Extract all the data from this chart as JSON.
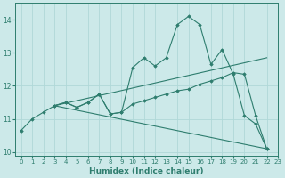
{
  "xlabel": "Humidex (Indice chaleur)",
  "xlim": [
    -0.5,
    23
  ],
  "ylim": [
    9.9,
    14.5
  ],
  "yticks": [
    10,
    11,
    12,
    13,
    14
  ],
  "xticks": [
    0,
    1,
    2,
    3,
    4,
    5,
    6,
    7,
    8,
    9,
    10,
    11,
    12,
    13,
    14,
    15,
    16,
    17,
    18,
    19,
    20,
    21,
    22,
    23
  ],
  "background_color": "#cce9e9",
  "grid_color": "#b0d8d8",
  "line_color": "#2e7d6e",
  "lines": [
    {
      "x": [
        0,
        1,
        2,
        3,
        4,
        5,
        6,
        7,
        8,
        9,
        10,
        11,
        12,
        13,
        14,
        15,
        16,
        17,
        18,
        19,
        20,
        21,
        22
      ],
      "y": [
        10.65,
        11.0,
        11.2,
        11.4,
        11.5,
        11.35,
        11.5,
        11.75,
        11.15,
        11.2,
        12.55,
        12.85,
        12.6,
        12.85,
        13.85,
        14.1,
        13.85,
        12.65,
        13.1,
        12.35,
        11.1,
        10.85,
        10.1
      ],
      "marker": true
    },
    {
      "x": [
        3,
        4,
        5,
        6,
        7,
        8,
        9,
        10,
        11,
        12,
        13,
        14,
        15,
        16,
        17,
        18,
        19,
        20,
        21,
        22
      ],
      "y": [
        11.4,
        11.5,
        11.35,
        11.5,
        11.75,
        11.15,
        11.2,
        11.45,
        11.55,
        11.65,
        11.75,
        11.85,
        11.9,
        12.05,
        12.15,
        12.25,
        12.4,
        12.35,
        11.1,
        10.1
      ],
      "marker": true
    },
    {
      "x": [
        3,
        22
      ],
      "y": [
        11.4,
        12.85
      ],
      "marker": false
    },
    {
      "x": [
        3,
        22
      ],
      "y": [
        11.4,
        10.1
      ],
      "marker": false
    }
  ],
  "figsize": [
    3.2,
    2.0
  ],
  "dpi": 100
}
